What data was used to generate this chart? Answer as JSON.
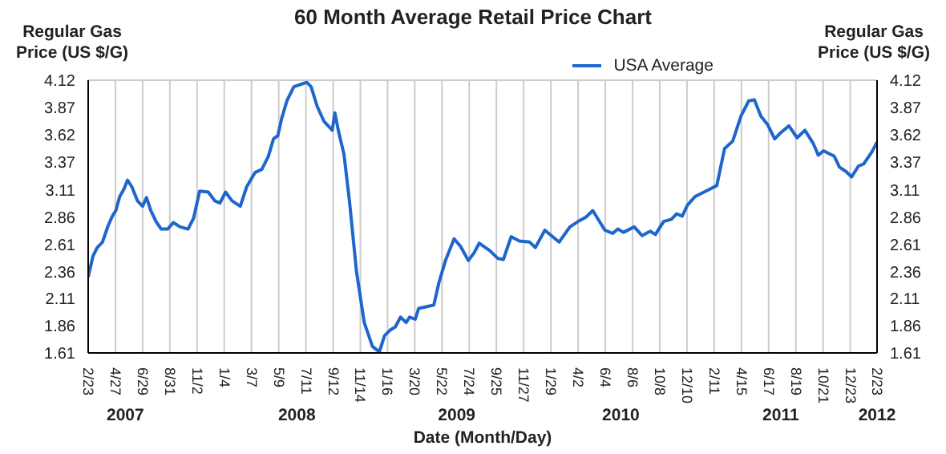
{
  "chart_data": {
    "type": "line",
    "title": "60 Month Average Retail Price Chart",
    "xlabel": "Date (Month/Day)",
    "ylabel": "Regular Gas Price (US $/G)",
    "y2label": "Regular Gas Price (US $/G)",
    "x": [
      "2007-02-23",
      "2007-03-06",
      "2007-03-16",
      "2007-03-28",
      "2007-04-10",
      "2007-04-20",
      "2007-04-28",
      "2007-05-07",
      "2007-05-17",
      "2007-05-25",
      "2007-06-04",
      "2007-06-17",
      "2007-06-29",
      "2007-07-08",
      "2007-07-18",
      "2007-07-30",
      "2007-08-11",
      "2007-08-26",
      "2007-09-08",
      "2007-09-24",
      "2007-10-12",
      "2007-10-25",
      "2007-11-08",
      "2007-11-28",
      "2007-12-13",
      "2007-12-25",
      "2008-01-07",
      "2008-01-22",
      "2008-02-10",
      "2008-02-25",
      "2008-03-15",
      "2008-03-31",
      "2008-04-15",
      "2008-04-27",
      "2008-05-07",
      "2008-05-16",
      "2008-05-28",
      "2008-06-13",
      "2008-06-28",
      "2008-07-13",
      "2008-07-23",
      "2008-08-06",
      "2008-08-22",
      "2008-09-10",
      "2008-09-16",
      "2008-09-25",
      "2008-10-07",
      "2008-10-20",
      "2008-11-05",
      "2008-11-23",
      "2008-12-12",
      "2008-12-28",
      "2009-01-09",
      "2009-01-22",
      "2009-02-03",
      "2009-02-15",
      "2009-02-28",
      "2009-03-08",
      "2009-03-21",
      "2009-03-29",
      "2009-04-21",
      "2009-05-03",
      "2009-05-15",
      "2009-05-30",
      "2009-06-19",
      "2009-07-04",
      "2009-07-22",
      "2009-08-04",
      "2009-08-16",
      "2009-09-10",
      "2009-09-28",
      "2009-10-11",
      "2009-10-29",
      "2009-11-17",
      "2009-12-11",
      "2009-12-24",
      "2010-01-15",
      "2010-02-17",
      "2010-03-14",
      "2010-04-02",
      "2010-04-20",
      "2010-05-06",
      "2010-06-03",
      "2010-06-21",
      "2010-07-03",
      "2010-07-16",
      "2010-08-10",
      "2010-08-28",
      "2010-09-16",
      "2010-09-28",
      "2010-10-17",
      "2010-11-04",
      "2010-11-16",
      "2010-11-29",
      "2010-12-11",
      "2010-12-29",
      "2011-01-23",
      "2011-02-17",
      "2011-03-07",
      "2011-03-26",
      "2011-04-14",
      "2011-05-02",
      "2011-05-15",
      "2011-05-30",
      "2011-06-15",
      "2011-07-01",
      "2011-07-16",
      "2011-08-03",
      "2011-08-22",
      "2011-09-09",
      "2011-09-28",
      "2011-10-10",
      "2011-10-22",
      "2011-11-16",
      "2011-11-28",
      "2011-12-13",
      "2011-12-26",
      "2012-01-11",
      "2012-01-23",
      "2012-02-11",
      "2012-02-23"
    ],
    "series": [
      {
        "name": "USA Average",
        "color": "#1f66cc",
        "values": [
          2.31,
          2.5,
          2.58,
          2.63,
          2.78,
          2.87,
          2.92,
          3.05,
          3.12,
          3.2,
          3.14,
          3.01,
          2.96,
          3.04,
          2.92,
          2.82,
          2.75,
          2.75,
          2.81,
          2.77,
          2.75,
          2.85,
          3.1,
          3.09,
          3.01,
          2.99,
          3.09,
          3.01,
          2.96,
          3.14,
          3.27,
          3.3,
          3.42,
          3.58,
          3.61,
          3.77,
          3.93,
          4.06,
          4.08,
          4.1,
          4.06,
          3.88,
          3.74,
          3.66,
          3.82,
          3.64,
          3.44,
          3.0,
          2.36,
          1.89,
          1.67,
          1.62,
          1.77,
          1.82,
          1.85,
          1.94,
          1.89,
          1.94,
          1.92,
          2.02,
          2.04,
          2.05,
          2.26,
          2.46,
          2.66,
          2.59,
          2.46,
          2.53,
          2.62,
          2.55,
          2.48,
          2.47,
          2.68,
          2.64,
          2.63,
          2.58,
          2.74,
          2.63,
          2.77,
          2.82,
          2.86,
          2.92,
          2.74,
          2.71,
          2.75,
          2.72,
          2.77,
          2.69,
          2.73,
          2.7,
          2.82,
          2.84,
          2.89,
          2.87,
          2.97,
          3.05,
          3.1,
          3.15,
          3.49,
          3.56,
          3.79,
          3.93,
          3.94,
          3.79,
          3.71,
          3.58,
          3.64,
          3.7,
          3.59,
          3.66,
          3.54,
          3.43,
          3.47,
          3.42,
          3.32,
          3.28,
          3.23,
          3.33,
          3.35,
          3.46,
          3.55
        ]
      }
    ],
    "xlim": [
      "2007-02-23",
      "2012-02-23"
    ],
    "xticks": [
      {
        "value": "2007-02-23",
        "label": "2/23"
      },
      {
        "value": "2007-04-27",
        "label": "4/27"
      },
      {
        "value": "2007-06-29",
        "label": "6/29"
      },
      {
        "value": "2007-08-31",
        "label": "8/31"
      },
      {
        "value": "2007-11-02",
        "label": "11/2"
      },
      {
        "value": "2008-01-04",
        "label": "1/4"
      },
      {
        "value": "2008-03-07",
        "label": "3/7"
      },
      {
        "value": "2008-05-09",
        "label": "5/9"
      },
      {
        "value": "2008-07-11",
        "label": "7/11"
      },
      {
        "value": "2008-09-12",
        "label": "9/12"
      },
      {
        "value": "2008-11-14",
        "label": "11/14"
      },
      {
        "value": "2009-01-16",
        "label": "1/16"
      },
      {
        "value": "2009-03-20",
        "label": "3/20"
      },
      {
        "value": "2009-05-22",
        "label": "5/22"
      },
      {
        "value": "2009-07-24",
        "label": "7/24"
      },
      {
        "value": "2009-09-25",
        "label": "9/25"
      },
      {
        "value": "2009-11-27",
        "label": "11/27"
      },
      {
        "value": "2010-01-29",
        "label": "1/29"
      },
      {
        "value": "2010-04-02",
        "label": "4/2"
      },
      {
        "value": "2010-06-04",
        "label": "6/4"
      },
      {
        "value": "2010-08-06",
        "label": "8/6"
      },
      {
        "value": "2010-10-08",
        "label": "10/8"
      },
      {
        "value": "2010-12-10",
        "label": "12/10"
      },
      {
        "value": "2011-02-11",
        "label": "2/11"
      },
      {
        "value": "2011-04-15",
        "label": "4/15"
      },
      {
        "value": "2011-06-17",
        "label": "6/17"
      },
      {
        "value": "2011-08-19",
        "label": "8/19"
      },
      {
        "value": "2011-10-21",
        "label": "10/21"
      },
      {
        "value": "2011-12-23",
        "label": "12/23"
      },
      {
        "value": "2012-02-23",
        "label": "2/23"
      }
    ],
    "ylim": [
      1.61,
      4.12
    ],
    "yticks": [
      1.61,
      1.86,
      2.11,
      2.36,
      2.61,
      2.86,
      3.11,
      3.37,
      3.62,
      3.87,
      4.12
    ],
    "y2lim": [
      1.61,
      4.12
    ],
    "y2ticks": [
      1.61,
      1.86,
      2.11,
      2.36,
      2.61,
      2.86,
      3.11,
      3.37,
      3.62,
      3.87,
      4.12
    ],
    "x2lim": [
      "2007-02-23",
      "2012-02-23"
    ],
    "x2ticks": [
      {
        "value": "2007-05-20",
        "label": "2007"
      },
      {
        "value": "2008-06-20",
        "label": "2008"
      },
      {
        "value": "2009-06-25",
        "label": "2009"
      },
      {
        "value": "2010-07-10",
        "label": "2010"
      },
      {
        "value": "2011-07-15",
        "label": "2011"
      },
      {
        "value": "2012-02-23",
        "label": "2012"
      }
    ],
    "grid": true,
    "legend": "top right"
  }
}
